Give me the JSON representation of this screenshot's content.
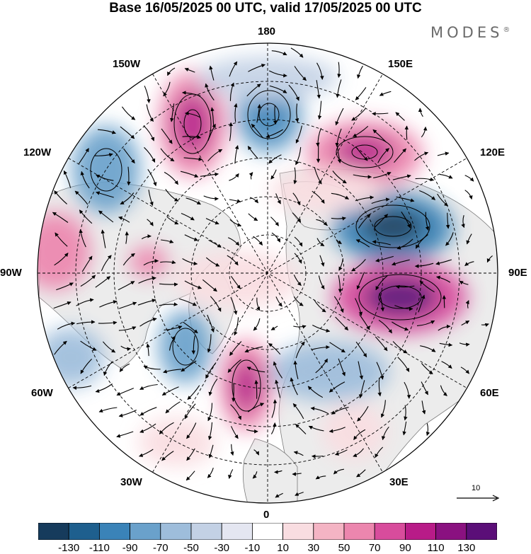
{
  "title": "Base 16/05/2025 00 UTC, valid 17/05/2025 00 UTC",
  "brand": "MODES",
  "brand_mark": "®",
  "longitude_labels": {
    "lon_180": "180",
    "lon_150e": "150E",
    "lon_120e": "120E",
    "lon_90e": "90E",
    "lon_60e": "60E",
    "lon_30e": "30E",
    "lon_0": "0",
    "lon_30w": "30W",
    "lon_60w": "60W",
    "lon_90w": "90W",
    "lon_120w": "120W",
    "lon_150w": "150W"
  },
  "reference_vector": {
    "label": "10"
  },
  "colorbar": {
    "colors": [
      "#163b5c",
      "#1e5f8e",
      "#3a83b8",
      "#6aa1cb",
      "#9ebddb",
      "#c3d1e5",
      "#e4e6f1",
      "#ffffff",
      "#f9dde1",
      "#f4b4c4",
      "#ec86ae",
      "#d84c9c",
      "#b81b88",
      "#8a1180",
      "#5b0e78"
    ],
    "labels": [
      "-130",
      "-110",
      "-90",
      "-70",
      "-50",
      "-30",
      "-10",
      "10",
      "30",
      "50",
      "70",
      "90",
      "110",
      "130"
    ]
  },
  "map_colors": {
    "land": "#ececec",
    "ocean": "#ffffff",
    "coast": "#7a7a7a",
    "grid": "#000000"
  }
}
